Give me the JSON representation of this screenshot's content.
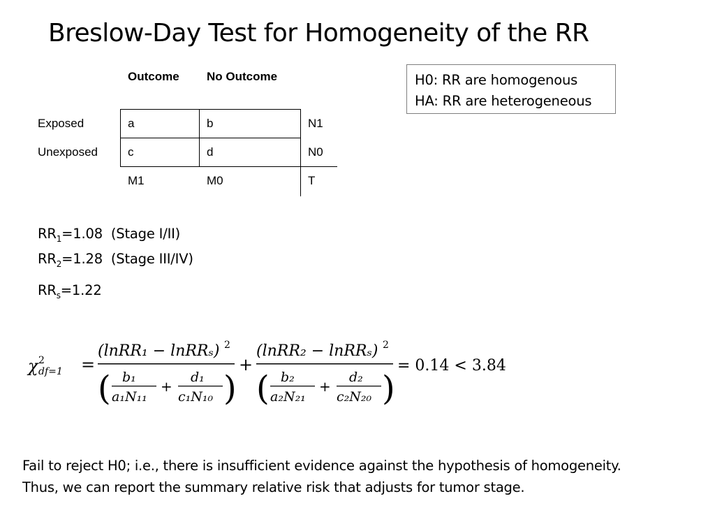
{
  "slide": {
    "title": "Breslow-Day Test for Homogeneity of the RR"
  },
  "table": {
    "col_headers": [
      "Outcome",
      "No Outcome"
    ],
    "row_labels": [
      "Exposed",
      "Unexposed"
    ],
    "cells": [
      [
        "a",
        "b",
        "N1"
      ],
      [
        "c",
        "d",
        "N0"
      ]
    ],
    "totals": [
      "M1",
      "M0",
      "T"
    ]
  },
  "hypotheses": {
    "h0": "H0: RR are homogenous",
    "ha": "HA: RR are heterogeneous"
  },
  "risk_ratios": [
    {
      "prefix": "RR",
      "sub": "1",
      "rest": "=1.08  (Stage I/II)"
    },
    {
      "prefix": "RR",
      "sub": "2",
      "rest": "=1.28  (Stage III/IV)"
    },
    {
      "prefix": "RR",
      "sub": "s",
      "rest": "=1.22"
    }
  ],
  "formula": {
    "chi": "χ",
    "chi_sup": "2",
    "chi_sub": "df=1",
    "eq": "=",
    "num1": "(lnRR₁ − lnRRₛ)",
    "num_sup": "2",
    "b1": "b₁",
    "a1n11": "a₁N₁₁",
    "d1": "d₁",
    "c1n10": "c₁N₁₀",
    "plus": "+",
    "num2": "(lnRR₂ − lnRRₛ)",
    "b2": "b₂",
    "a2n21": "a₂N₂₁",
    "d2": "d₂",
    "c2n20": "c₂N₂₀",
    "result": "= 0.14 < 3.84"
  },
  "conclusion": {
    "line1": "Fail to reject H0; i.e., there is insufficient evidence against the hypothesis of homogeneity.",
    "line2": "Thus, we can report the summary relative risk that adjusts for tumor stage."
  }
}
